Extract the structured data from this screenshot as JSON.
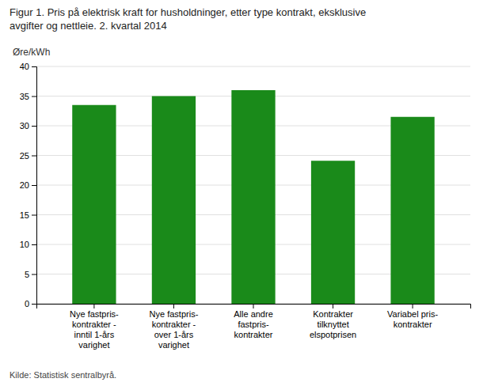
{
  "chart_data": {
    "type": "bar",
    "title": "Figur 1. Pris på elektrisk kraft for husholdninger, etter type kontrakt, eksklusive\navgifter og nettleie. 2. kvartal 2014",
    "ylabel": "Øre/kWh",
    "categories": [
      "Nye fastpris-\nkontrakter -\ninntil 1-års\nvarighet",
      "Nye fastpris-\nkontrakter -\nover 1-års\nvarighet",
      "Alle andre\nfastpris-\nkontrakter",
      "Kontrakter\ntilknyttet\nelspotprisen",
      "Variabel pris-\nkontrakter"
    ],
    "values": [
      33.5,
      35.0,
      36.0,
      24.1,
      31.5
    ],
    "color": "#1a8a1a",
    "ylim": [
      0,
      40
    ],
    "yticks": [
      0,
      5,
      10,
      15,
      20,
      25,
      30,
      35,
      40
    ],
    "grid": true,
    "annotations": [
      "Kilde: Statistisk sentralbyrå."
    ]
  }
}
